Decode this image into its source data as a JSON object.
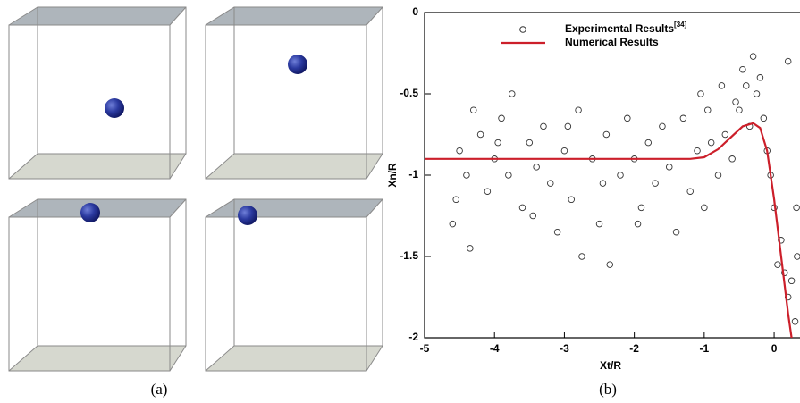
{
  "captions": {
    "a": "(a)",
    "b": "(b)"
  },
  "chart_data": {
    "type": "scatter-line",
    "xlabel": "Xt/R",
    "ylabel": "Xn/R",
    "xlim": [
      -5,
      0.37
    ],
    "ylim": [
      -2,
      0
    ],
    "xticks": [
      -5,
      -4,
      -3,
      -2,
      -1,
      0
    ],
    "yticks": [
      0,
      -0.5,
      -1,
      -1.5,
      -2
    ],
    "grid": false,
    "legend": "top-left",
    "series": [
      {
        "name": "Experimental Results",
        "name_superscript": "[34]",
        "kind": "markers",
        "color": "#333333",
        "x": [
          -4.6,
          -4.5,
          -4.4,
          -4.35,
          -4.3,
          -4.2,
          -4.1,
          -4.0,
          -3.9,
          -3.8,
          -3.75,
          -3.6,
          -3.5,
          -3.4,
          -3.3,
          -3.2,
          -3.1,
          -3.0,
          -2.9,
          -2.8,
          -2.75,
          -2.6,
          -2.5,
          -2.4,
          -2.35,
          -2.2,
          -2.1,
          -2.0,
          -1.9,
          -1.8,
          -1.7,
          -1.6,
          -1.5,
          -1.4,
          -1.3,
          -1.2,
          -1.1,
          -1.0,
          -0.9,
          -0.8,
          -0.7,
          -0.6,
          -0.55,
          -0.5,
          -0.45,
          -0.4,
          -0.35,
          -0.3,
          -0.25,
          -0.2,
          -0.15,
          -0.1,
          -0.05,
          0.0,
          0.05,
          0.1,
          0.15,
          0.2,
          0.25,
          0.3,
          0.32,
          0.33,
          -4.55,
          -3.95,
          -2.95,
          -1.95,
          -0.95,
          -0.75,
          0.2,
          -1.05,
          -3.45,
          -2.45
        ],
        "values": [
          -1.3,
          -0.85,
          -1.0,
          -1.45,
          -0.6,
          -0.75,
          -1.1,
          -0.9,
          -0.65,
          -1.0,
          -0.5,
          -1.2,
          -0.8,
          -0.95,
          -0.7,
          -1.05,
          -1.35,
          -0.85,
          -1.15,
          -0.6,
          -1.5,
          -0.9,
          -1.3,
          -0.75,
          -1.55,
          -1.0,
          -0.65,
          -0.9,
          -1.2,
          -0.8,
          -1.05,
          -0.7,
          -0.95,
          -1.35,
          -0.65,
          -1.1,
          -0.85,
          -1.2,
          -0.8,
          -1.0,
          -0.75,
          -0.9,
          -0.55,
          -0.6,
          -0.35,
          -0.45,
          -0.7,
          -0.27,
          -0.5,
          -0.4,
          -0.65,
          -0.85,
          -1.0,
          -1.2,
          -1.55,
          -1.4,
          -1.6,
          -1.75,
          -1.65,
          -1.9,
          -1.2,
          -1.5,
          -1.15,
          -0.8,
          -0.7,
          -1.3,
          -0.6,
          -0.45,
          -0.3,
          -0.5,
          -1.25,
          -1.05
        ]
      },
      {
        "name": "Numerical Results",
        "kind": "line",
        "color": "#cc1f2a",
        "x": [
          -5,
          -4,
          -3,
          -2,
          -1.2,
          -1,
          -0.8,
          -0.6,
          -0.45,
          -0.3,
          -0.2,
          -0.1,
          0,
          0.1,
          0.2,
          0.25
        ],
        "values": [
          -0.9,
          -0.9,
          -0.9,
          -0.9,
          -0.9,
          -0.89,
          -0.84,
          -0.76,
          -0.7,
          -0.68,
          -0.71,
          -0.85,
          -1.15,
          -1.5,
          -1.85,
          -2
        ]
      }
    ]
  }
}
